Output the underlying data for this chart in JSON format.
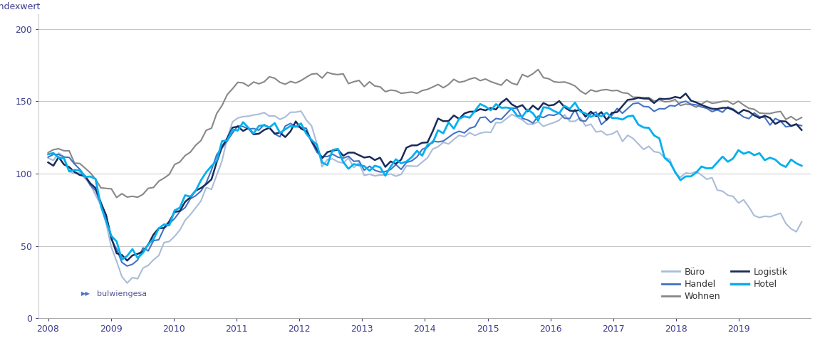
{
  "ylabel": "Indexwert",
  "ylim": [
    0,
    210
  ],
  "yticks": [
    0,
    50,
    100,
    150,
    200
  ],
  "colors": {
    "buero": "#aabcd8",
    "handel": "#4472c4",
    "wohnen": "#888888",
    "logistik": "#1a2b5a",
    "hotel": "#00b0f0"
  },
  "axis_label_color": "#3c3c8c",
  "tick_label_color": "#3c3c8c",
  "grid_color": "#bbbbbb",
  "xtick_years": [
    2008,
    2009,
    2010,
    2011,
    2012,
    2013,
    2014,
    2015,
    2016,
    2017,
    2018,
    2019
  ]
}
